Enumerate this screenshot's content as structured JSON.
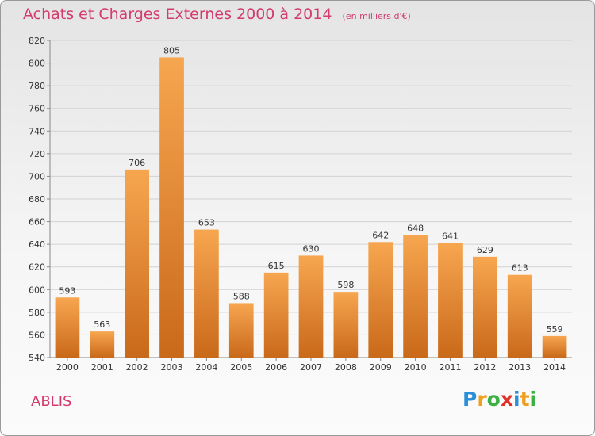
{
  "chart_data": {
    "type": "bar",
    "title": "Achats et Charges Externes 2000 à 2014",
    "subtitle": "(en milliers d'€)",
    "categories": [
      "2000",
      "2001",
      "2002",
      "2003",
      "2004",
      "2005",
      "2006",
      "2007",
      "2008",
      "2009",
      "2010",
      "2011",
      "2012",
      "2013",
      "2014"
    ],
    "values": [
      593,
      563,
      706,
      805,
      653,
      588,
      615,
      630,
      598,
      642,
      648,
      641,
      629,
      613,
      559
    ],
    "ylim": [
      540,
      820
    ],
    "yticks": [
      540,
      560,
      580,
      600,
      620,
      640,
      660,
      680,
      700,
      720,
      740,
      760,
      780,
      800,
      820
    ],
    "grid": true,
    "bar_color": "#f0902e"
  },
  "commune": "ABLIS",
  "logo": {
    "letters": [
      "P",
      "r",
      "o",
      "x",
      "i",
      "t",
      "i"
    ],
    "colors": [
      "#2a8fd8",
      "#f0a020",
      "#3cb043",
      "#e0302a",
      "#2a8fd8",
      "#f0a020",
      "#3cb043"
    ]
  }
}
